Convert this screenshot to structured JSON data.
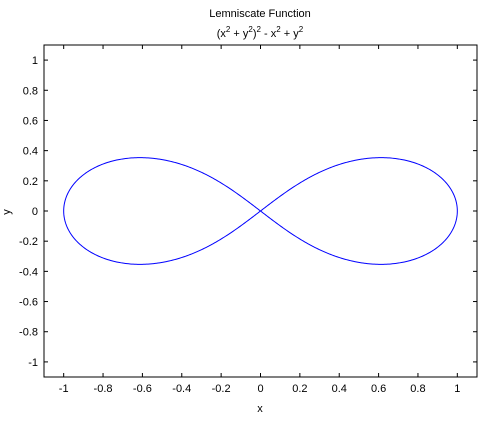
{
  "chart_data": {
    "type": "line",
    "title": "Lemniscate Function",
    "subtitle": {
      "parts": [
        {
          "t": "(x",
          "sup": false
        },
        {
          "t": "2",
          "sup": true
        },
        {
          "t": " + y",
          "sup": false
        },
        {
          "t": "2",
          "sup": true
        },
        {
          "t": ")",
          "sup": false
        },
        {
          "t": "2",
          "sup": true
        },
        {
          "t": " - x",
          "sup": false
        },
        {
          "t": "2",
          "sup": true
        },
        {
          "t": " + y",
          "sup": false
        },
        {
          "t": "2",
          "sup": true
        }
      ]
    },
    "xlabel": "x",
    "ylabel": "y",
    "xlim": [
      -1.1,
      1.1
    ],
    "ylim": [
      -1.1,
      1.1
    ],
    "xticks": [
      -1,
      -0.8,
      -0.6,
      -0.4,
      -0.2,
      0,
      0.2,
      0.4,
      0.6,
      0.8,
      1
    ],
    "xtick_labels": [
      "-1",
      "-0.8",
      "-0.6",
      "-0.4",
      "-0.2",
      "0",
      "0.2",
      "0.4",
      "0.6",
      "0.8",
      "1"
    ],
    "yticks": [
      1,
      0.8,
      0.6,
      0.4,
      0.2,
      0,
      -0.2,
      -0.4,
      -0.6,
      -0.8,
      -1
    ],
    "ytick_labels": [
      "1",
      "0.8",
      "0.6",
      "0.4",
      "0.2",
      "0",
      "-0.2",
      "-0.4",
      "-0.6",
      "-0.8",
      "-1"
    ],
    "grid": false,
    "series": [
      {
        "equation": "(x^2 + y^2)^2 - x^2 + y^2 = 0",
        "color": "#0000ff",
        "curve": "lemniscate of Bernoulli, a = 1",
        "x_range": [
          -1,
          1
        ],
        "y_range": [
          -0.354,
          0.354
        ]
      }
    ]
  }
}
